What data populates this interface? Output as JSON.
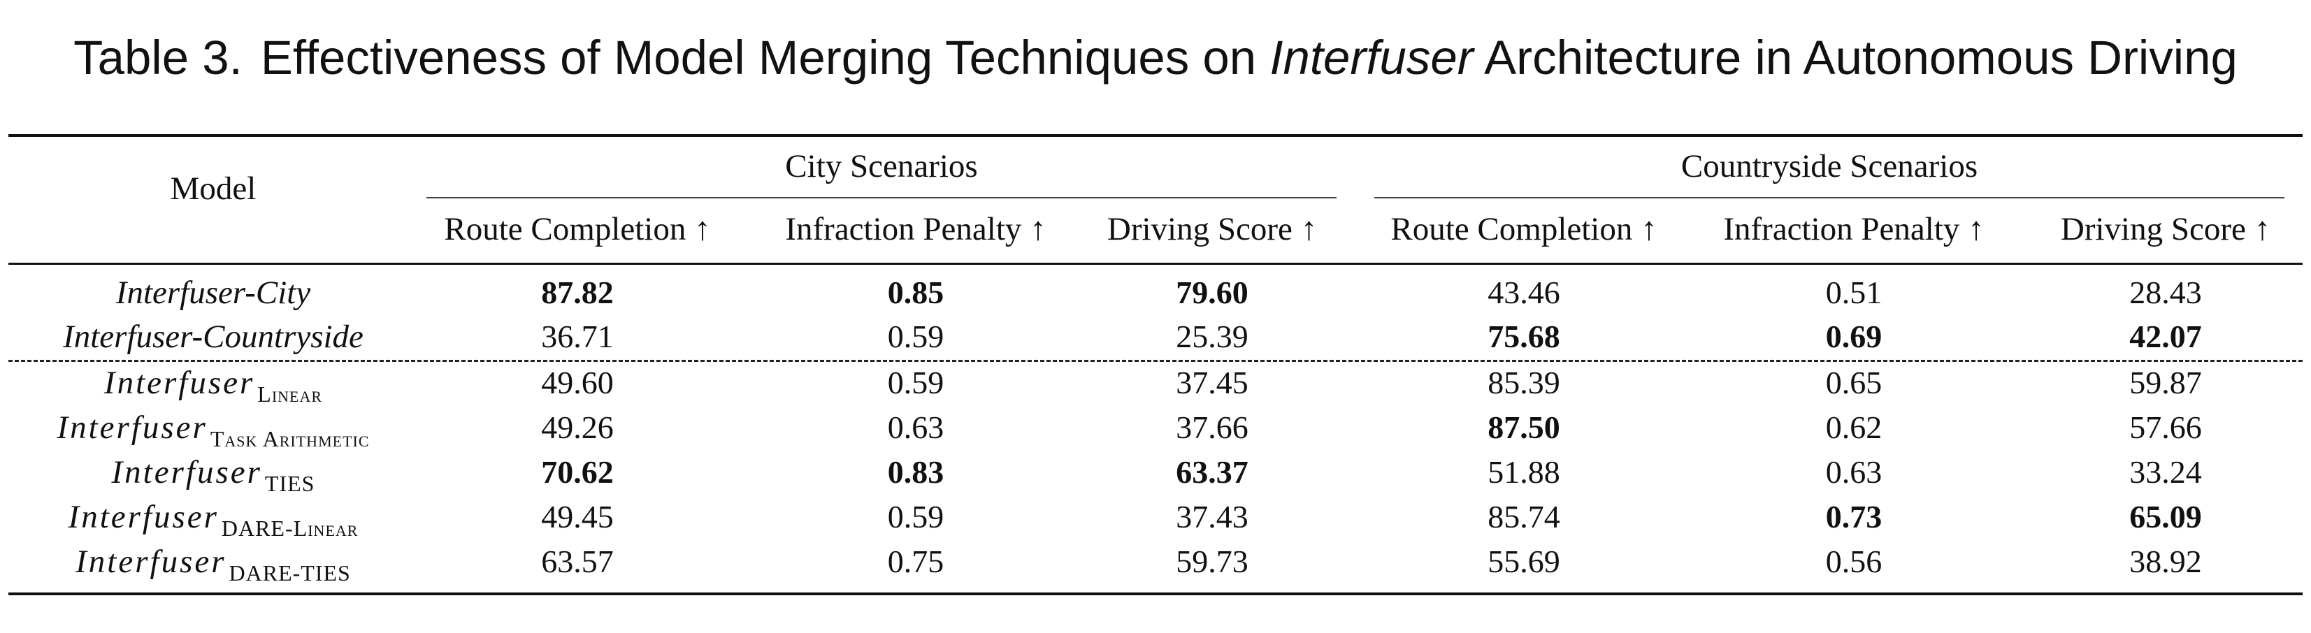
{
  "caption": {
    "label": "Table 3.",
    "pre": "Effectiveness of Model Merging Techniques on",
    "emph": "Interfuser",
    "post": "Architecture in Autonomous Driving"
  },
  "header": {
    "model": "Model",
    "groups": [
      "City Scenarios",
      "Countryside Scenarios"
    ],
    "columns": [
      "Route Completion ↑",
      "Infraction Penalty ↑",
      "Driving Score ↑",
      "Route Completion ↑",
      "Infraction Penalty ↑",
      "Driving Score ↑"
    ]
  },
  "rows": [
    {
      "model": "Interfuser-City",
      "sub": "",
      "values": [
        "87.82",
        "0.85",
        "79.60",
        "43.46",
        "0.51",
        "28.43"
      ],
      "bold": [
        true,
        true,
        true,
        false,
        false,
        false
      ]
    },
    {
      "model": "Interfuser-Countryside",
      "sub": "",
      "values": [
        "36.71",
        "0.59",
        "25.39",
        "75.68",
        "0.69",
        "42.07"
      ],
      "bold": [
        false,
        false,
        false,
        true,
        true,
        true
      ]
    },
    {
      "model": "Interfuser",
      "sub": "Linear",
      "values": [
        "49.60",
        "0.59",
        "37.45",
        "85.39",
        "0.65",
        "59.87"
      ],
      "bold": [
        false,
        false,
        false,
        false,
        false,
        false
      ]
    },
    {
      "model": "Interfuser",
      "sub": "Task Arithmetic",
      "values": [
        "49.26",
        "0.63",
        "37.66",
        "87.50",
        "0.62",
        "57.66"
      ],
      "bold": [
        false,
        false,
        false,
        true,
        false,
        false
      ]
    },
    {
      "model": "Interfuser",
      "sub": "TIES",
      "values": [
        "70.62",
        "0.83",
        "63.37",
        "51.88",
        "0.63",
        "33.24"
      ],
      "bold": [
        true,
        true,
        true,
        false,
        false,
        false
      ]
    },
    {
      "model": "Interfuser",
      "sub": "DARE-Linear",
      "values": [
        "49.45",
        "0.59",
        "37.43",
        "85.74",
        "0.73",
        "65.09"
      ],
      "bold": [
        false,
        false,
        false,
        false,
        true,
        true
      ]
    },
    {
      "model": "Interfuser",
      "sub": "DARE-TIES",
      "values": [
        "63.57",
        "0.75",
        "59.73",
        "55.69",
        "0.56",
        "38.92"
      ],
      "bold": [
        false,
        false,
        false,
        false,
        false,
        false
      ]
    }
  ]
}
